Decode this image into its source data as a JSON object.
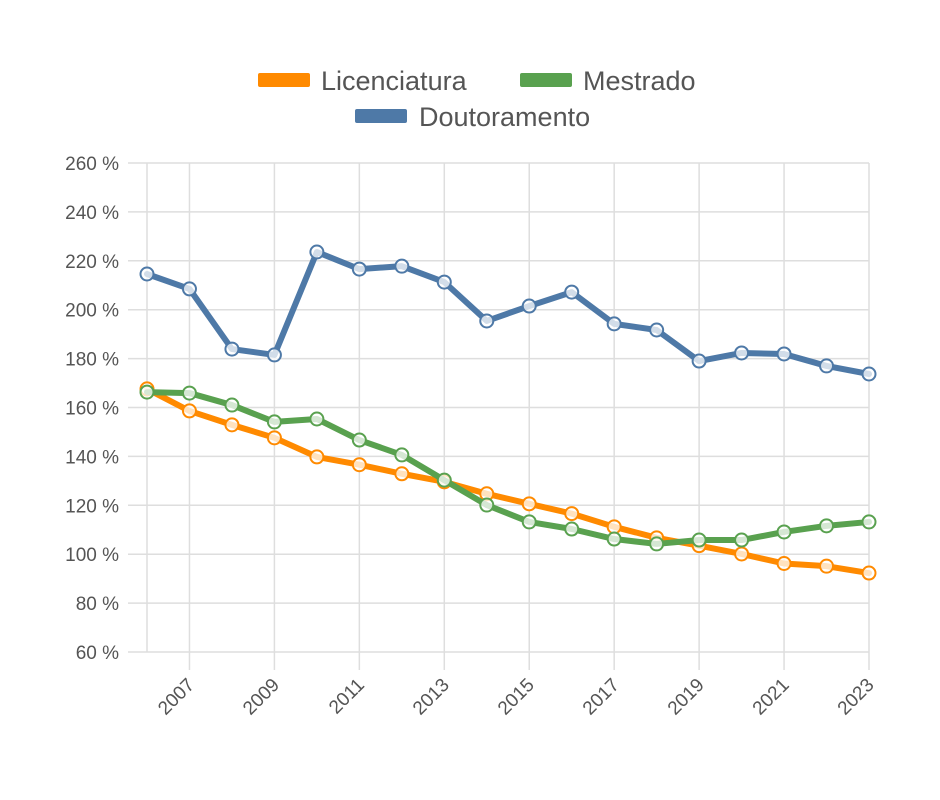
{
  "chart_data": {
    "type": "line",
    "title": "",
    "xlabel": "",
    "ylabel": "",
    "ylim": [
      60,
      260
    ],
    "xlim": [
      2006,
      2023
    ],
    "grid": true,
    "legend_position": "top",
    "y_ticks": [
      "60 %",
      "80 %",
      "100 %",
      "120 %",
      "140 %",
      "160 %",
      "180 %",
      "200 %",
      "220 %",
      "240 %",
      "260 %"
    ],
    "x_ticks": [
      "2007",
      "2009",
      "2011",
      "2013",
      "2015",
      "2017",
      "2019",
      "2021",
      "2023"
    ],
    "x": [
      2006,
      2007,
      2008,
      2009,
      2010,
      2011,
      2012,
      2013,
      2014,
      2015,
      2016,
      2017,
      2018,
      2019,
      2020,
      2021,
      2022,
      2023
    ],
    "series": [
      {
        "name": "Licenciatura",
        "color": "#ff8a00",
        "values": [
          167.6,
          158.6,
          152.9,
          147.6,
          139.8,
          136.6,
          132.9,
          129.6,
          124.7,
          120.6,
          116.6,
          111.2,
          106.7,
          103.5,
          100.1,
          96.2,
          95.1,
          92.3
        ]
      },
      {
        "name": "Mestrado",
        "color": "#59a14f",
        "values": [
          166.3,
          165.9,
          161.0,
          154.1,
          155.3,
          146.7,
          140.6,
          130.3,
          120.1,
          113.2,
          110.3,
          106.2,
          104.2,
          105.8,
          105.8,
          109.1,
          111.6,
          113.2
        ]
      },
      {
        "name": "Doutoramento",
        "color": "#4e79a7",
        "values": [
          214.6,
          208.5,
          183.9,
          181.5,
          223.6,
          216.6,
          217.8,
          211.3,
          195.4,
          201.5,
          207.2,
          194.2,
          191.7,
          179.0,
          182.3,
          181.9,
          177.0,
          173.7
        ]
      }
    ]
  }
}
